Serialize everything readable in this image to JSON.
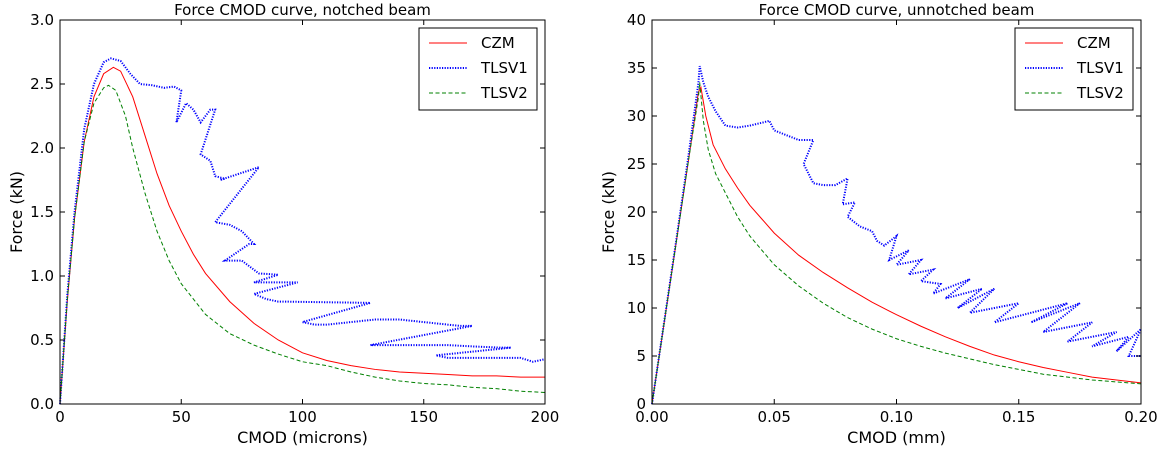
{
  "chart_data": [
    {
      "type": "line",
      "title": "Force CMOD curve, notched beam",
      "xlabel": "CMOD (microns)",
      "ylabel": "Force (kN)",
      "xlim": [
        0,
        200
      ],
      "ylim": [
        0,
        3.0
      ],
      "xticks": [
        "0",
        "50",
        "100",
        "150",
        "200"
      ],
      "yticks": [
        "0.0",
        "0.5",
        "1.0",
        "1.5",
        "2.0",
        "2.5",
        "3.0"
      ],
      "grid": false,
      "legend": "top-right",
      "series": [
        {
          "name": "CZM",
          "color": "#ff0000",
          "style": "solid",
          "points": [
            [
              0,
              0
            ],
            [
              3,
              0.8
            ],
            [
              6,
              1.45
            ],
            [
              10,
              2.05
            ],
            [
              14,
              2.4
            ],
            [
              18,
              2.58
            ],
            [
              22,
              2.63
            ],
            [
              25,
              2.6
            ],
            [
              30,
              2.4
            ],
            [
              35,
              2.1
            ],
            [
              40,
              1.8
            ],
            [
              45,
              1.55
            ],
            [
              50,
              1.35
            ],
            [
              55,
              1.17
            ],
            [
              60,
              1.02
            ],
            [
              70,
              0.8
            ],
            [
              80,
              0.63
            ],
            [
              90,
              0.5
            ],
            [
              100,
              0.4
            ],
            [
              110,
              0.34
            ],
            [
              120,
              0.3
            ],
            [
              130,
              0.27
            ],
            [
              140,
              0.25
            ],
            [
              150,
              0.24
            ],
            [
              160,
              0.23
            ],
            [
              170,
              0.22
            ],
            [
              180,
              0.22
            ],
            [
              190,
              0.21
            ],
            [
              200,
              0.21
            ]
          ]
        },
        {
          "name": "TLSV1",
          "color": "#0000ff",
          "style": "dotted",
          "points": [
            [
              0,
              0
            ],
            [
              3,
              0.85
            ],
            [
              6,
              1.5
            ],
            [
              10,
              2.15
            ],
            [
              14,
              2.5
            ],
            [
              18,
              2.67
            ],
            [
              21,
              2.7
            ],
            [
              25,
              2.68
            ],
            [
              29,
              2.58
            ],
            [
              33,
              2.5
            ],
            [
              38,
              2.49
            ],
            [
              43,
              2.47
            ],
            [
              47,
              2.48
            ],
            [
              50,
              2.45
            ],
            [
              48,
              2.2
            ],
            [
              52,
              2.35
            ],
            [
              55,
              2.3
            ],
            [
              58,
              2.2
            ],
            [
              62,
              2.3
            ],
            [
              64,
              2.3
            ],
            [
              58,
              1.95
            ],
            [
              62,
              1.9
            ],
            [
              64,
              1.78
            ],
            [
              68,
              1.76
            ],
            [
              66,
              1.75
            ],
            [
              82,
              1.85
            ],
            [
              64,
              1.42
            ],
            [
              70,
              1.4
            ],
            [
              75,
              1.35
            ],
            [
              80,
              1.25
            ],
            [
              78,
              1.25
            ],
            [
              68,
              1.12
            ],
            [
              75,
              1.12
            ],
            [
              82,
              1.02
            ],
            [
              90,
              1.01
            ],
            [
              80,
              0.95
            ],
            [
              98,
              0.95
            ],
            [
              80,
              0.86
            ],
            [
              85,
              0.82
            ],
            [
              90,
              0.8
            ],
            [
              92,
              0.8
            ],
            [
              128,
              0.79
            ],
            [
              100,
              0.64
            ],
            [
              105,
              0.62
            ],
            [
              110,
              0.62
            ],
            [
              130,
              0.66
            ],
            [
              140,
              0.66
            ],
            [
              165,
              0.61
            ],
            [
              170,
              0.61
            ],
            [
              128,
              0.46
            ],
            [
              160,
              0.46
            ],
            [
              170,
              0.45
            ],
            [
              182,
              0.44
            ],
            [
              186,
              0.44
            ],
            [
              155,
              0.38
            ],
            [
              160,
              0.36
            ],
            [
              168,
              0.36
            ],
            [
              180,
              0.36
            ],
            [
              190,
              0.36
            ],
            [
              195,
              0.33
            ],
            [
              200,
              0.35
            ]
          ]
        },
        {
          "name": "TLSV2",
          "color": "#008000",
          "style": "dashed",
          "points": [
            [
              0,
              0
            ],
            [
              3,
              0.82
            ],
            [
              6,
              1.45
            ],
            [
              10,
              2.05
            ],
            [
              14,
              2.35
            ],
            [
              18,
              2.47
            ],
            [
              20,
              2.49
            ],
            [
              23,
              2.45
            ],
            [
              27,
              2.25
            ],
            [
              30,
              2.0
            ],
            [
              35,
              1.65
            ],
            [
              40,
              1.35
            ],
            [
              45,
              1.12
            ],
            [
              50,
              0.94
            ],
            [
              55,
              0.82
            ],
            [
              60,
              0.7
            ],
            [
              70,
              0.55
            ],
            [
              80,
              0.46
            ],
            [
              90,
              0.39
            ],
            [
              100,
              0.33
            ],
            [
              110,
              0.3
            ],
            [
              120,
              0.25
            ],
            [
              130,
              0.21
            ],
            [
              140,
              0.18
            ],
            [
              150,
              0.16
            ],
            [
              160,
              0.15
            ],
            [
              170,
              0.13
            ],
            [
              180,
              0.12
            ],
            [
              190,
              0.1
            ],
            [
              200,
              0.09
            ]
          ]
        }
      ]
    },
    {
      "type": "line",
      "title": "Force CMOD curve, unnotched beam",
      "xlabel": "CMOD (mm)",
      "ylabel": "Force (kN)",
      "xlim": [
        0,
        0.2
      ],
      "ylim": [
        0,
        40
      ],
      "xticks": [
        "0.00",
        "0.05",
        "0.10",
        "0.15",
        "0.20"
      ],
      "yticks": [
        "0",
        "5",
        "10",
        "15",
        "20",
        "25",
        "30",
        "35",
        "40"
      ],
      "grid": false,
      "legend": "top-right",
      "series": [
        {
          "name": "CZM",
          "color": "#ff0000",
          "style": "solid",
          "points": [
            [
              0,
              0
            ],
            [
              0.005,
              8.5
            ],
            [
              0.01,
              17
            ],
            [
              0.015,
              25.5
            ],
            [
              0.019,
              32.5
            ],
            [
              0.02,
              33
            ],
            [
              0.022,
              30
            ],
            [
              0.025,
              27
            ],
            [
              0.03,
              24.5
            ],
            [
              0.035,
              22.5
            ],
            [
              0.04,
              20.7
            ],
            [
              0.05,
              17.8
            ],
            [
              0.06,
              15.5
            ],
            [
              0.07,
              13.7
            ],
            [
              0.08,
              12.1
            ],
            [
              0.09,
              10.6
            ],
            [
              0.1,
              9.3
            ],
            [
              0.11,
              8.1
            ],
            [
              0.12,
              7.0
            ],
            [
              0.13,
              6.0
            ],
            [
              0.14,
              5.1
            ],
            [
              0.15,
              4.4
            ],
            [
              0.16,
              3.8
            ],
            [
              0.17,
              3.3
            ],
            [
              0.18,
              2.8
            ],
            [
              0.19,
              2.5
            ],
            [
              0.2,
              2.2
            ]
          ]
        },
        {
          "name": "TLSV1",
          "color": "#0000ff",
          "style": "dotted",
          "points": [
            [
              0,
              0
            ],
            [
              0.005,
              8.6
            ],
            [
              0.01,
              17.2
            ],
            [
              0.015,
              26
            ],
            [
              0.019,
              33.5
            ],
            [
              0.0195,
              35.2
            ],
            [
              0.021,
              33.5
            ],
            [
              0.023,
              32
            ],
            [
              0.026,
              30.5
            ],
            [
              0.03,
              29
            ],
            [
              0.035,
              28.8
            ],
            [
              0.04,
              29
            ],
            [
              0.045,
              29.3
            ],
            [
              0.048,
              29.5
            ],
            [
              0.05,
              28.5
            ],
            [
              0.055,
              28
            ],
            [
              0.06,
              27.5
            ],
            [
              0.066,
              27.5
            ],
            [
              0.062,
              25
            ],
            [
              0.066,
              23
            ],
            [
              0.07,
              22.8
            ],
            [
              0.075,
              22.8
            ],
            [
              0.08,
              23.5
            ],
            [
              0.078,
              20.8
            ],
            [
              0.083,
              21
            ],
            [
              0.08,
              19.5
            ],
            [
              0.085,
              18.5
            ],
            [
              0.09,
              18
            ],
            [
              0.092,
              17
            ],
            [
              0.095,
              16.5
            ],
            [
              0.1,
              17.5
            ],
            [
              0.097,
              15
            ],
            [
              0.105,
              16
            ],
            [
              0.1,
              14.5
            ],
            [
              0.11,
              15
            ],
            [
              0.105,
              13.5
            ],
            [
              0.115,
              14
            ],
            [
              0.11,
              12.8
            ],
            [
              0.118,
              12.5
            ],
            [
              0.115,
              11.5
            ],
            [
              0.13,
              13
            ],
            [
              0.12,
              11
            ],
            [
              0.135,
              12
            ],
            [
              0.125,
              10
            ],
            [
              0.14,
              12
            ],
            [
              0.13,
              9.5
            ],
            [
              0.15,
              10.5
            ],
            [
              0.14,
              8.5
            ],
            [
              0.17,
              10.5
            ],
            [
              0.155,
              8.5
            ],
            [
              0.175,
              10.5
            ],
            [
              0.16,
              7.5
            ],
            [
              0.18,
              8.5
            ],
            [
              0.17,
              6.5
            ],
            [
              0.19,
              7.5
            ],
            [
              0.18,
              6
            ],
            [
              0.195,
              7
            ],
            [
              0.19,
              5.5
            ],
            [
              0.2,
              7.8
            ],
            [
              0.195,
              5
            ],
            [
              0.2,
              5
            ]
          ]
        },
        {
          "name": "TLSV2",
          "color": "#008000",
          "style": "dashed",
          "points": [
            [
              0,
              0
            ],
            [
              0.005,
              8.5
            ],
            [
              0.01,
              17
            ],
            [
              0.015,
              25.5
            ],
            [
              0.019,
              32
            ],
            [
              0.0195,
              33.5
            ],
            [
              0.021,
              29.5
            ],
            [
              0.023,
              26.5
            ],
            [
              0.026,
              24
            ],
            [
              0.03,
              22
            ],
            [
              0.035,
              19.5
            ],
            [
              0.04,
              17.5
            ],
            [
              0.05,
              14.5
            ],
            [
              0.06,
              12.3
            ],
            [
              0.07,
              10.5
            ],
            [
              0.08,
              9
            ],
            [
              0.09,
              7.8
            ],
            [
              0.1,
              6.8
            ],
            [
              0.11,
              6
            ],
            [
              0.12,
              5.3
            ],
            [
              0.13,
              4.7
            ],
            [
              0.14,
              4.1
            ],
            [
              0.15,
              3.6
            ],
            [
              0.16,
              3.1
            ],
            [
              0.17,
              2.8
            ],
            [
              0.18,
              2.5
            ],
            [
              0.19,
              2.3
            ],
            [
              0.2,
              2.1
            ]
          ]
        }
      ]
    }
  ]
}
